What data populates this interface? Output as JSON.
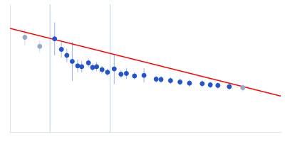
{
  "chart_data": {
    "type": "scatter",
    "series": [
      {
        "type": "vline",
        "color": "#b8d4ee",
        "x": [
          0.148,
          0.37
        ]
      },
      {
        "type": "line",
        "color": "#ff0000",
        "x": [
          0.0,
          1.0
        ],
        "values": [
          0.84,
          0.39
        ]
      },
      {
        "type": "scatter",
        "color": "#99aac8",
        "x": [
          0.055,
          0.11
        ],
        "values": [
          0.78,
          0.72
        ],
        "yerr": [
          0.055,
          0.04
        ]
      },
      {
        "type": "scatter",
        "color": "#2255cc",
        "x": [
          0.165,
          0.19,
          0.21,
          0.23,
          0.25,
          0.265,
          0.29,
          0.305,
          0.32,
          0.34,
          0.36,
          0.385,
          0.41,
          0.43,
          0.46,
          0.495,
          0.54,
          0.558,
          0.593,
          0.628,
          0.663,
          0.71,
          0.74,
          0.768,
          0.81
        ],
        "values": [
          0.77,
          0.7,
          0.66,
          0.62,
          0.59,
          0.585,
          0.61,
          0.58,
          0.585,
          0.565,
          0.548,
          0.57,
          0.535,
          0.54,
          0.523,
          0.527,
          0.502,
          0.5,
          0.492,
          0.483,
          0.475,
          0.472,
          0.464,
          0.46,
          0.452
        ],
        "yerr": [
          0.11,
          0.055,
          0.045,
          0.13,
          0.042,
          0.038,
          0.028,
          0.026,
          0.03,
          0.025,
          0.025,
          0.1,
          0.025,
          0.036,
          0.024,
          0.048,
          0.023,
          0.023,
          0.022,
          0.022,
          0.022,
          0.022,
          0.022,
          0.022,
          0.022
        ]
      },
      {
        "type": "scatter",
        "color": "#99aac8",
        "x": [
          0.86
        ],
        "values": [
          0.445
        ],
        "yerr": [
          0.025
        ]
      }
    ],
    "xlim": [
      0.0,
      1.0
    ],
    "ylim": [
      0.15,
      1.0
    ],
    "grid": false,
    "tick_labels": false
  }
}
